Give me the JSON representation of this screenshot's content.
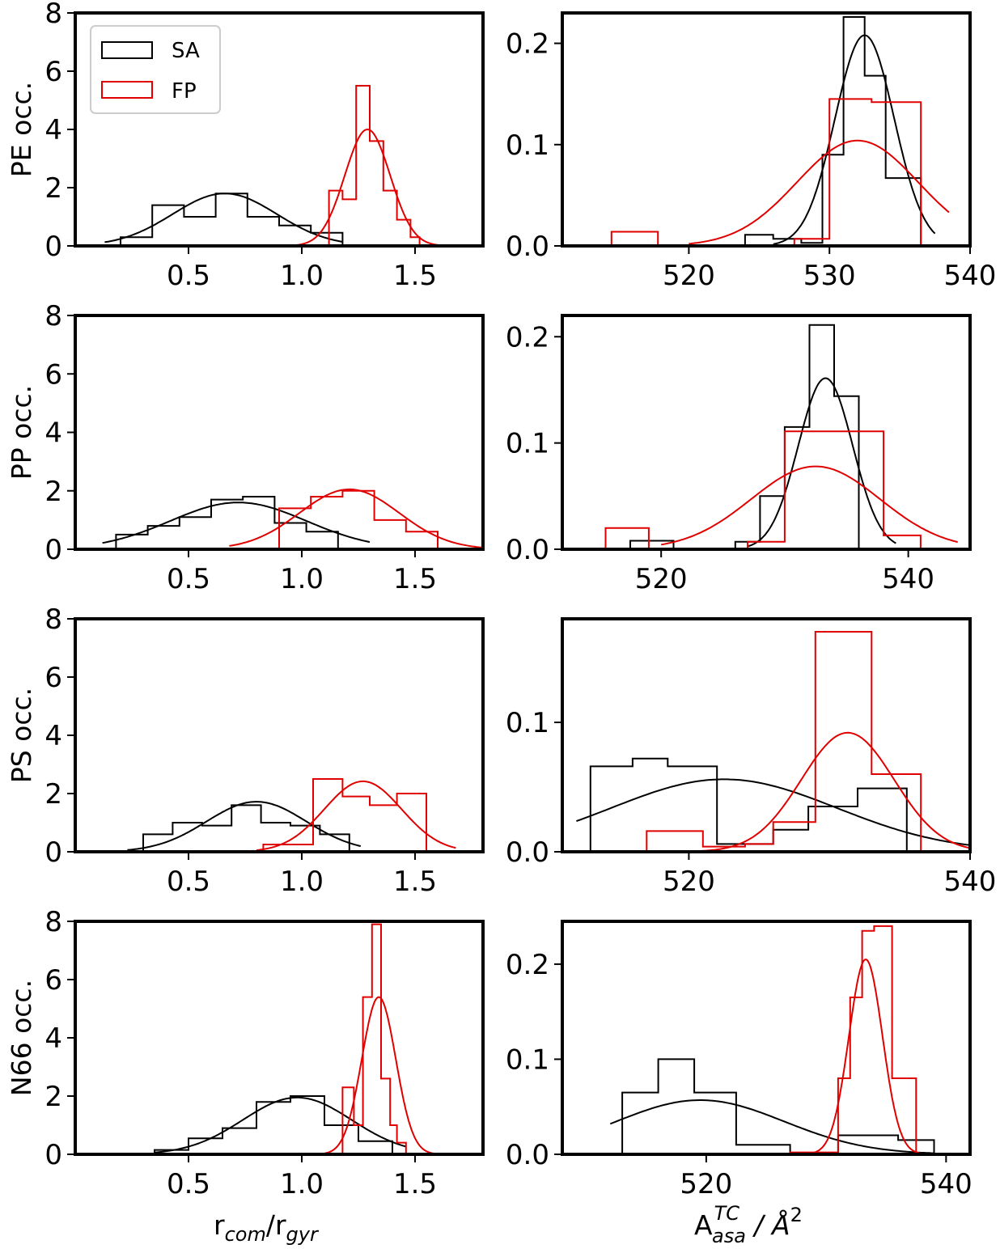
{
  "legend": {
    "entries": [
      {
        "name": "SA",
        "color": "#000000"
      },
      {
        "name": "FP",
        "color": "#e00000"
      }
    ]
  },
  "xlabels": {
    "left": {
      "base": "r",
      "sub1": "com",
      "mid": "/r",
      "sub2": "gyr"
    },
    "right": {
      "base": "A",
      "sup": "TC",
      "sub": "asa",
      "unit": " / Å",
      "unit_sup": "2"
    }
  },
  "chart_data": [
    {
      "type": "histogram",
      "row": "PE",
      "ylabel": "PE occ.",
      "xlim": [
        0.0,
        1.8
      ],
      "ylim": [
        0,
        8
      ],
      "xticks": [
        "0.5",
        "1.0",
        "1.5"
      ],
      "yticks": [
        "0",
        "2",
        "4",
        "6",
        "8"
      ],
      "series": [
        {
          "name": "SA",
          "color": "#000000",
          "hist": {
            "edges": [
              0.2,
              0.34,
              0.48,
              0.62,
              0.76,
              0.9,
              1.04,
              1.18
            ],
            "counts": [
              0.3,
              1.4,
              1.0,
              1.8,
              1.0,
              0.7,
              0.45
            ]
          },
          "fit": {
            "mu": 0.66,
            "sigma": 0.23,
            "amp": 1.8,
            "range": [
              0.13,
              1.18
            ]
          }
        },
        {
          "name": "FP",
          "color": "#e00000",
          "hist": {
            "edges": [
              1.12,
              1.18,
              1.24,
              1.3,
              1.36,
              1.42,
              1.48,
              1.52
            ],
            "counts": [
              1.9,
              1.6,
              5.5,
              3.6,
              1.9,
              0.9,
              0.3
            ]
          },
          "fit": {
            "mu": 1.29,
            "sigma": 0.1,
            "amp": 4.0,
            "range": [
              0.97,
              1.61
            ]
          }
        }
      ]
    },
    {
      "type": "histogram",
      "row": "PE",
      "ylabel": "",
      "xlim": [
        511,
        540
      ],
      "ylim": [
        0,
        0.23
      ],
      "xticks": [
        "520",
        "530",
        "540"
      ],
      "yticks": [
        "0.0",
        "0.1",
        "0.2"
      ],
      "series": [
        {
          "name": "SA",
          "color": "#000000",
          "hist": {
            "edges": [
              524,
              526,
              528,
              529.5,
              531,
              532.5,
              534,
              536.5
            ],
            "counts": [
              0.011,
              0.007,
              0.003,
              0.09,
              0.226,
              0.168,
              0.067
            ]
          },
          "fit": {
            "mu": 532.5,
            "sigma": 2.1,
            "amp": 0.208,
            "range": [
              526,
              537.5
            ]
          }
        },
        {
          "name": "FP",
          "color": "#e00000",
          "hist": {
            "edges": [
              514.5,
              517.8,
              524,
              527.5,
              530,
              533,
              536.5
            ],
            "counts": [
              0.014,
              0.0,
              0.0,
              0.007,
              0.145,
              0.142,
              0.0
            ]
          },
          "fit": {
            "mu": 532,
            "sigma": 4.3,
            "amp": 0.104,
            "range": [
              520,
              538.5
            ]
          }
        }
      ]
    },
    {
      "type": "histogram",
      "row": "PP",
      "ylabel": "PP occ.",
      "xlim": [
        0.0,
        1.8
      ],
      "ylim": [
        0,
        8
      ],
      "xticks": [
        "0.5",
        "1.0",
        "1.5"
      ],
      "yticks": [
        "0",
        "2",
        "4",
        "6",
        "8"
      ],
      "series": [
        {
          "name": "SA",
          "color": "#000000",
          "hist": {
            "edges": [
              0.18,
              0.32,
              0.46,
              0.6,
              0.74,
              0.88,
              1.02,
              1.16
            ],
            "counts": [
              0.5,
              0.8,
              1.1,
              1.7,
              1.8,
              0.9,
              0.6
            ]
          },
          "fit": {
            "mu": 0.72,
            "sigma": 0.3,
            "amp": 1.6,
            "range": [
              0.12,
              1.3
            ]
          }
        },
        {
          "name": "FP",
          "color": "#e00000",
          "hist": {
            "edges": [
              0.9,
              1.04,
              1.18,
              1.32,
              1.46,
              1.6
            ],
            "counts": [
              1.4,
              1.8,
              2.0,
              1.0,
              0.6
            ]
          },
          "fit": {
            "mu": 1.21,
            "sigma": 0.22,
            "amp": 2.05,
            "range": [
              0.68,
              1.8
            ]
          }
        }
      ]
    },
    {
      "type": "histogram",
      "row": "PP",
      "ylabel": "",
      "xlim": [
        512,
        545
      ],
      "ylim": [
        0,
        0.22
      ],
      "xticks": [
        "520",
        "540"
      ],
      "yticks": [
        "0.0",
        "0.1",
        "0.2"
      ],
      "series": [
        {
          "name": "SA",
          "color": "#000000",
          "hist": {
            "edges": [
              517.5,
              521,
              526,
              528,
              530,
              532,
              534,
              536
            ],
            "counts": [
              0.008,
              0.0,
              0.007,
              0.05,
              0.115,
              0.211,
              0.144
            ]
          },
          "fit": {
            "mu": 533.3,
            "sigma": 2.2,
            "amp": 0.161,
            "range": [
              527,
              539
            ]
          }
        },
        {
          "name": "FP",
          "color": "#e00000",
          "hist": {
            "edges": [
              515.5,
              519,
              527,
              530,
              534,
              538,
              541
            ],
            "counts": [
              0.02,
              0.0,
              0.007,
              0.111,
              0.111,
              0.013
            ]
          },
          "fit": {
            "mu": 532.5,
            "sigma": 5.2,
            "amp": 0.078,
            "range": [
              520,
              544
            ]
          }
        }
      ]
    },
    {
      "type": "histogram",
      "row": "PS",
      "ylabel": "PS occ.",
      "xlim": [
        0.0,
        1.8
      ],
      "ylim": [
        0,
        8
      ],
      "xticks": [
        "0.5",
        "1.0",
        "1.5"
      ],
      "yticks": [
        "0",
        "2",
        "4",
        "6",
        "8"
      ],
      "series": [
        {
          "name": "SA",
          "color": "#000000",
          "hist": {
            "edges": [
              0.3,
              0.43,
              0.56,
              0.69,
              0.82,
              0.95,
              1.08,
              1.21
            ],
            "counts": [
              0.6,
              1.0,
              0.9,
              1.6,
              1.0,
              0.9,
              0.6
            ]
          },
          "fit": {
            "mu": 0.8,
            "sigma": 0.22,
            "amp": 1.72,
            "range": [
              0.23,
              1.26
            ]
          }
        },
        {
          "name": "FP",
          "color": "#e00000",
          "hist": {
            "edges": [
              0.83,
              1.05,
              1.18,
              1.3,
              1.42,
              1.55
            ],
            "counts": [
              0.25,
              2.5,
              1.9,
              1.6,
              2.0
            ]
          },
          "fit": {
            "mu": 1.27,
            "sigma": 0.17,
            "amp": 2.42,
            "range": [
              0.8,
              1.68
            ]
          }
        }
      ]
    },
    {
      "type": "histogram",
      "row": "PS",
      "ylabel": "",
      "xlim": [
        511,
        540
      ],
      "ylim": [
        0,
        0.18
      ],
      "xticks": [
        "520",
        "540"
      ],
      "yticks": [
        "0.0",
        "0.1"
      ],
      "series": [
        {
          "name": "SA",
          "color": "#000000",
          "hist": {
            "edges": [
              513,
              516,
              518.5,
              522,
              526,
              528.5,
              532,
              535.5
            ],
            "counts": [
              0.066,
              0.072,
              0.066,
              0.006,
              0.017,
              0.035,
              0.049
            ]
          },
          "fit": {
            "mu": 522.5,
            "sigma": 8.0,
            "amp": 0.056,
            "range": [
              512,
              540
            ]
          }
        },
        {
          "name": "FP",
          "color": "#e00000",
          "hist": {
            "edges": [
              517,
              521,
              524,
              526,
              529,
              533,
              536.5
            ],
            "counts": [
              0.016,
              0.004,
              0.006,
              0.023,
              0.17,
              0.06
            ]
          },
          "fit": {
            "mu": 531.3,
            "sigma": 3.3,
            "amp": 0.092,
            "range": [
              518,
              540
            ]
          }
        }
      ]
    },
    {
      "type": "histogram",
      "row": "N66",
      "ylabel": "N66 occ.",
      "xlim": [
        0.0,
        1.8
      ],
      "ylim": [
        0,
        8
      ],
      "xticks": [
        "0.5",
        "1.0",
        "1.5"
      ],
      "yticks": [
        "0",
        "2",
        "4",
        "6",
        "8"
      ],
      "series": [
        {
          "name": "SA",
          "color": "#000000",
          "hist": {
            "edges": [
              0.35,
              0.5,
              0.65,
              0.8,
              0.95,
              1.1,
              1.25,
              1.4
            ],
            "counts": [
              0.15,
              0.55,
              0.9,
              1.8,
              2.0,
              1.0,
              0.45
            ]
          },
          "fit": {
            "mu": 0.98,
            "sigma": 0.24,
            "amp": 1.95,
            "range": [
              0.35,
              1.46
            ]
          }
        },
        {
          "name": "FP",
          "color": "#e00000",
          "hist": {
            "edges": [
              1.18,
              1.23,
              1.27,
              1.31,
              1.35,
              1.39,
              1.42,
              1.46
            ],
            "counts": [
              2.3,
              1.0,
              5.4,
              7.9,
              2.6,
              1.0,
              0.4
            ]
          },
          "fit": {
            "mu": 1.34,
            "sigma": 0.075,
            "amp": 5.4,
            "range": [
              1.1,
              1.6
            ]
          }
        }
      ]
    },
    {
      "type": "histogram",
      "row": "N66",
      "ylabel": "",
      "xlim": [
        508,
        542
      ],
      "ylim": [
        0,
        0.245
      ],
      "xticks": [
        "520",
        "540"
      ],
      "yticks": [
        "0.0",
        "0.1",
        "0.2"
      ],
      "series": [
        {
          "name": "SA",
          "color": "#000000",
          "hist": {
            "edges": [
              513,
              516,
              519,
              522.5,
              527,
              531,
              536,
              539
            ],
            "counts": [
              0.065,
              0.1,
              0.065,
              0.01,
              0.0,
              0.02,
              0.015
            ]
          },
          "fit": {
            "mu": 519.5,
            "sigma": 7.0,
            "amp": 0.057,
            "range": [
              512,
              539
            ]
          }
        },
        {
          "name": "FP",
          "color": "#e00000",
          "hist": {
            "edges": [
              527,
              531,
              532,
              533,
              534,
              535.5,
              537.5
            ],
            "counts": [
              0.002,
              0.08,
              0.165,
              0.235,
              0.24,
              0.08
            ]
          },
          "fit": {
            "mu": 533.3,
            "sigma": 1.4,
            "amp": 0.205,
            "range": [
              528.5,
              538.5
            ]
          }
        }
      ]
    }
  ]
}
